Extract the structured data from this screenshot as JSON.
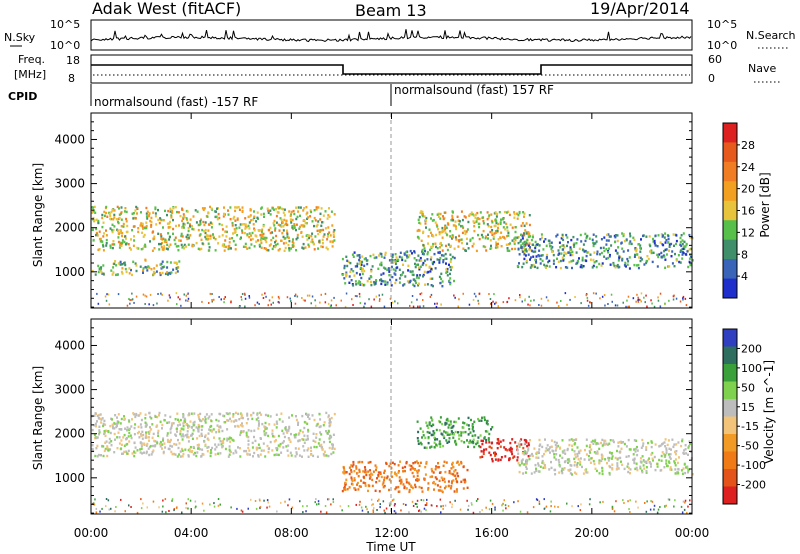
{
  "header": {
    "station": "Adak West (fitACF)",
    "beam": "Beam 13",
    "date": "19/Apr/2014"
  },
  "noise_panel": {
    "left_label": "N.Sky",
    "right_label": "N.Search",
    "left_ticks": [
      "10^5",
      "10^0"
    ],
    "right_ticks": [
      "10^5",
      "10^0"
    ]
  },
  "freq_panel": {
    "left_label_1": "Freq.",
    "left_label_2": "[MHz]",
    "left_ticks": [
      "18",
      "8"
    ],
    "right_label": "Nave",
    "right_ticks": [
      "60",
      "0"
    ],
    "freq_steps": [
      {
        "from": "00:00",
        "to": "10:00",
        "level": "high"
      },
      {
        "from": "10:00",
        "to": "18:00",
        "level": "low"
      },
      {
        "from": "18:00",
        "to": "24:00",
        "level": "high"
      }
    ]
  },
  "cpid": {
    "label": "CPID",
    "left_program": "normalsound (fast) -157 RF",
    "right_program": "normalsound (fast) 157 RF",
    "switch_time": "12:00"
  },
  "colors": {
    "power_scale": [
      "#1f2fcc",
      "#3a64b8",
      "#3f8f6a",
      "#57c04a",
      "#e7c43b",
      "#f2a021",
      "#f07d24",
      "#e65a1e",
      "#dd2020"
    ],
    "velocity_scale": [
      "#2f3fc0",
      "#2d6e5e",
      "#3aa03a",
      "#7fd24d",
      "#bdbdbd",
      "#f1c47a",
      "#f29a26",
      "#f07a16",
      "#e4541a",
      "#dd2020"
    ]
  },
  "chart_data": [
    {
      "type": "heatmap",
      "name_printed": "",
      "ylabel": "Slant Range [km]",
      "xlabel": "Time UT",
      "x_ticks": [
        "00:00",
        "04:00",
        "08:00",
        "12:00",
        "16:00",
        "20:00",
        "00:00"
      ],
      "y_ticks": [
        1000,
        2000,
        3000,
        4000
      ],
      "ylim": [
        180,
        4600
      ],
      "colorbar_label": "Power [dB]",
      "colorbar_ticks": [
        "4",
        "8",
        "12",
        "16",
        "20",
        "24",
        "28"
      ],
      "colorbar_range": [
        0,
        30
      ],
      "scatter_regions": [
        {
          "start_hour": 0.0,
          "end_hour": 9.7,
          "range_km": [
            1500,
            2500
          ],
          "mean_power_db": 14
        },
        {
          "start_hour": 0.0,
          "end_hour": 3.5,
          "range_km": [
            950,
            1300
          ],
          "mean_power_db": 10
        },
        {
          "start_hour": 10.0,
          "end_hour": 14.5,
          "range_km": [
            700,
            1500
          ],
          "mean_power_db": 8
        },
        {
          "start_hour": 13.0,
          "end_hour": 17.5,
          "range_km": [
            1500,
            2400
          ],
          "mean_power_db": 14
        },
        {
          "start_hour": 17.0,
          "end_hour": 24.0,
          "range_km": [
            1100,
            1900
          ],
          "mean_power_db": 6
        }
      ]
    },
    {
      "type": "heatmap",
      "ylabel": "Slant Range [km]",
      "xlabel": "Time UT",
      "x_ticks": [
        "00:00",
        "04:00",
        "08:00",
        "12:00",
        "16:00",
        "20:00",
        "00:00"
      ],
      "y_ticks": [
        1000,
        2000,
        3000,
        4000
      ],
      "ylim": [
        180,
        4600
      ],
      "colorbar_label": "Velocity [m s^-1]",
      "colorbar_ticks": [
        "200",
        "100",
        "50",
        "15",
        "-15",
        "-50",
        "-100",
        "-200"
      ],
      "colorbar_range": [
        -250,
        250
      ],
      "scatter_regions": [
        {
          "start_hour": 0.0,
          "end_hour": 9.7,
          "range_km": [
            1500,
            2500
          ],
          "mean_velocity": 0
        },
        {
          "start_hour": 10.0,
          "end_hour": 15.0,
          "range_km": [
            700,
            1400
          ],
          "mean_velocity": -80
        },
        {
          "start_hour": 13.0,
          "end_hour": 16.0,
          "range_km": [
            1700,
            2400
          ],
          "mean_velocity": 60
        },
        {
          "start_hour": 15.5,
          "end_hour": 17.5,
          "range_km": [
            1400,
            1900
          ],
          "mean_velocity": -200
        },
        {
          "start_hour": 17.0,
          "end_hour": 24.0,
          "range_km": [
            1100,
            1900
          ],
          "mean_velocity": 0
        }
      ]
    }
  ]
}
